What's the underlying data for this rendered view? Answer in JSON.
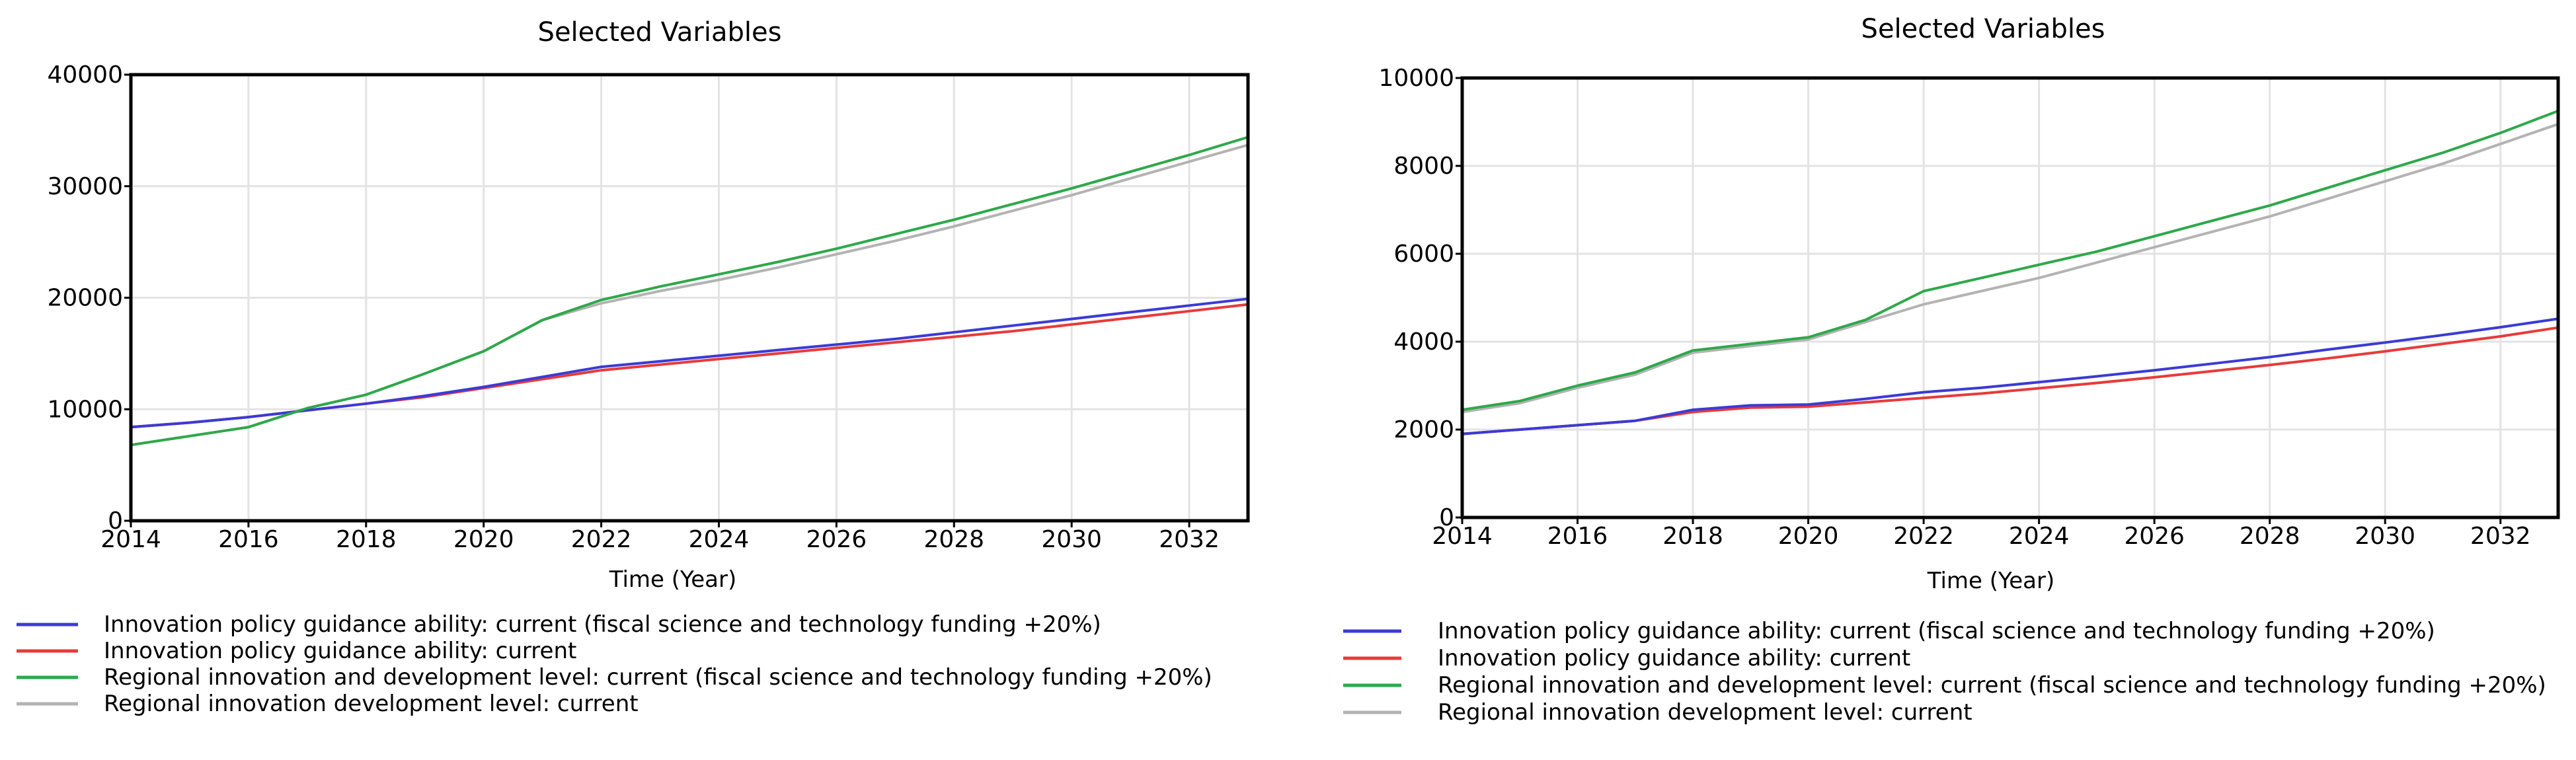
{
  "chart_data": [
    {
      "type": "line",
      "title": "Selected Variables",
      "xlabel": "Time (Year)",
      "ylabel": "",
      "xlim": [
        2014,
        2033
      ],
      "ylim": [
        0,
        40000
      ],
      "x_ticks": [
        2014,
        2016,
        2018,
        2020,
        2022,
        2024,
        2026,
        2028,
        2030,
        2032
      ],
      "y_ticks": [
        0,
        10000,
        20000,
        30000,
        40000
      ],
      "grid": true,
      "legend_position": "bottom",
      "x": [
        2014,
        2015,
        2016,
        2017,
        2018,
        2019,
        2020,
        2021,
        2022,
        2023,
        2024,
        2025,
        2026,
        2027,
        2028,
        2029,
        2030,
        2031,
        2032,
        2033
      ],
      "series": [
        {
          "name": "Innovation policy guidance ability: current (fiscal science and technology funding +20%)",
          "color": "#3b3bd6",
          "values": [
            8400,
            8800,
            9300,
            9900,
            10500,
            11200,
            12000,
            12900,
            13800,
            14300,
            14800,
            15300,
            15800,
            16300,
            16900,
            17500,
            18100,
            18700,
            19300,
            19900
          ]
        },
        {
          "name": "Innovation policy guidance ability: current",
          "color": "#e83a3a",
          "values": [
            8400,
            8800,
            9300,
            9900,
            10500,
            11100,
            11900,
            12700,
            13500,
            14000,
            14500,
            15000,
            15500,
            16000,
            16500,
            17000,
            17600,
            18200,
            18800,
            19400
          ]
        },
        {
          "name": "Regional innovation and development level: current (fiscal science and technology funding +20%)",
          "color": "#2ea84a",
          "values": [
            6800,
            7600,
            8400,
            10100,
            11300,
            13200,
            15200,
            18000,
            19800,
            21000,
            22100,
            23200,
            24400,
            25700,
            27000,
            28400,
            29800,
            31300,
            32800,
            34400
          ]
        },
        {
          "name": "Regional innovation development level: current",
          "color": "#b3b3b3",
          "values": [
            6800,
            7600,
            8400,
            10100,
            11300,
            13200,
            15200,
            18000,
            19500,
            20600,
            21600,
            22700,
            23900,
            25100,
            26400,
            27800,
            29200,
            30700,
            32200,
            33700
          ]
        }
      ]
    },
    {
      "type": "line",
      "title": "Selected Variables",
      "xlabel": "Time (Year)",
      "ylabel": "",
      "xlim": [
        2014,
        2033
      ],
      "ylim": [
        0,
        10000
      ],
      "x_ticks": [
        2014,
        2016,
        2018,
        2020,
        2022,
        2024,
        2026,
        2028,
        2030,
        2032
      ],
      "y_ticks": [
        0,
        2000,
        4000,
        6000,
        8000,
        10000
      ],
      "grid": true,
      "legend_position": "bottom",
      "x": [
        2014,
        2015,
        2016,
        2017,
        2018,
        2019,
        2020,
        2021,
        2022,
        2023,
        2024,
        2025,
        2026,
        2027,
        2028,
        2029,
        2030,
        2031,
        2032,
        2033
      ],
      "series": [
        {
          "name": "Innovation policy guidance ability: current (fiscal science and technology funding +20%)",
          "color": "#3b3bd6",
          "values": [
            1900,
            2000,
            2100,
            2200,
            2450,
            2550,
            2570,
            2700,
            2850,
            2950,
            3080,
            3210,
            3350,
            3500,
            3650,
            3820,
            3980,
            4150,
            4330,
            4520
          ]
        },
        {
          "name": "Innovation policy guidance ability: current",
          "color": "#e83a3a",
          "values": [
            1900,
            2000,
            2100,
            2200,
            2400,
            2500,
            2520,
            2620,
            2720,
            2820,
            2940,
            3060,
            3190,
            3330,
            3470,
            3620,
            3780,
            3950,
            4120,
            4320
          ]
        },
        {
          "name": "Regional innovation and development level: current (fiscal science and technology funding +20%)",
          "color": "#2ea84a",
          "values": [
            2450,
            2650,
            3000,
            3300,
            3800,
            3950,
            4100,
            4500,
            5150,
            5450,
            5750,
            6050,
            6400,
            6750,
            7100,
            7500,
            7900,
            8300,
            8750,
            9250
          ]
        },
        {
          "name": "Regional innovation development level: current",
          "color": "#b3b3b3",
          "values": [
            2400,
            2600,
            2950,
            3250,
            3750,
            3900,
            4050,
            4450,
            4850,
            5150,
            5450,
            5800,
            6150,
            6500,
            6850,
            7250,
            7650,
            8050,
            8500,
            8950
          ]
        }
      ]
    }
  ]
}
